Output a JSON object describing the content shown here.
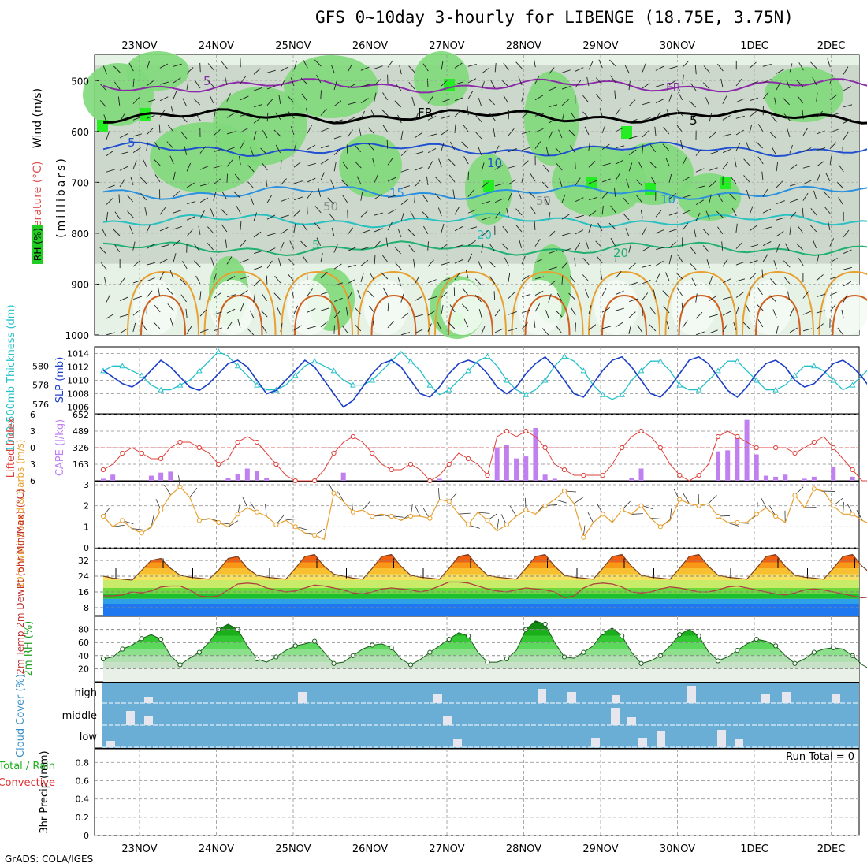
{
  "title": "GFS 0~10day 3-hourly for LIBENGE (18.75E, 3.75N)",
  "footer": "GrADS: COLA/IGES",
  "dates": [
    "23NOV",
    "24NOV",
    "25NOV",
    "26NOV",
    "27NOV",
    "28NOV",
    "29NOV",
    "30NOV",
    "1DEC",
    "2DEC"
  ],
  "colors": {
    "rh_green": "#7fd97a",
    "rh_gray": "#c8d4c8",
    "cloud_blue": "#6aaed6",
    "slp": "#1a3ec8",
    "thickness": "#25c0c8",
    "lifted_index": "#e0403a",
    "cape": "#c080f0",
    "wind": "#e8a030",
    "dewpoint": "#b04040"
  },
  "chart_data": [
    {
      "type": "heatmap",
      "panel": "upper-air",
      "ylabel": "(millibars)",
      "y_ticks": [
        500,
        600,
        700,
        800,
        900,
        1000
      ],
      "ylim": [
        1000,
        450
      ],
      "legend_labels": [
        "Wind (m/s)",
        "Temperature (°C)",
        "RH (%)"
      ],
      "rh_label": "RH (%)",
      "contour_labels": [
        "5",
        "FR",
        "5",
        "10",
        "15",
        "20",
        "5",
        "FR",
        "5",
        "10",
        "20",
        "50",
        "50"
      ],
      "isotherms": [
        {
          "label": "5",
          "pressure": 510
        },
        {
          "label": "FR",
          "pressure": 570
        },
        {
          "label": "5",
          "pressure": 635
        },
        {
          "label": "10",
          "pressure": 720
        },
        {
          "label": "15",
          "pressure": 775
        },
        {
          "label": "20",
          "pressure": 830
        }
      ]
    },
    {
      "type": "line",
      "panel": "slp-thickness",
      "y_left_label": "1000-500mb Thickness (dm)",
      "y_left_ticks": [
        576,
        578,
        580
      ],
      "y_right_label": "SLP (mb)",
      "y_right_ticks": [
        1006,
        1008,
        1010,
        1012,
        1014
      ],
      "ylim_slp": [
        1005,
        1015
      ],
      "series": [
        {
          "name": "SLP (mb)",
          "values": [
            1011.5,
            1010.5,
            1009.5,
            1009,
            1010,
            1011.5,
            1013,
            1012,
            1010.5,
            1009,
            1008.5,
            1009.5,
            1011,
            1012.5,
            1013,
            1012,
            1010,
            1008,
            1008.5,
            1010,
            1011.5,
            1013,
            1012,
            1010,
            1008,
            1006,
            1007,
            1009,
            1011,
            1012.5,
            1013,
            1012,
            1010,
            1008,
            1007.5,
            1009,
            1011,
            1012.5,
            1013,
            1012.5,
            1011,
            1009,
            1008,
            1009,
            1011,
            1012.5,
            1013.5,
            1012,
            1010,
            1008,
            1007.5,
            1009.5,
            1011.5,
            1013,
            1013.5,
            1012,
            1010,
            1008,
            1007.5,
            1009,
            1011,
            1013,
            1013.5,
            1012.5,
            1010.5,
            1008.5,
            1007.5,
            1009,
            1011,
            1012.5,
            1013,
            1012,
            1010,
            1009,
            1009.5,
            1011,
            1012.5,
            1013,
            1012,
            1010.5,
            1008.5,
            1007,
            1008,
            1010,
            1011.5,
            1012.5,
            1012,
            1010
          ]
        },
        {
          "name": "1000-500mb Thickness (dm)",
          "values": [
            579.5,
            580,
            580,
            579.5,
            579,
            578,
            577.5,
            577.5,
            578,
            578.5,
            579.5,
            580.5,
            581.5,
            581,
            580,
            579,
            578,
            577.5,
            577.5,
            578,
            579,
            580,
            580.5,
            580,
            579.5,
            578.5,
            578,
            578,
            578.5,
            579.5,
            580.5,
            581.5,
            580.5,
            579.5,
            578,
            577,
            577.5,
            578.5,
            579.5,
            580.5,
            581,
            580,
            578.5,
            577.5,
            577,
            577.5,
            578.5,
            580,
            581,
            580.5,
            579.5,
            578,
            577,
            576.5,
            577,
            578.5,
            579.5,
            580.5,
            580.5,
            579.5,
            578,
            577.5,
            577.5,
            578.5,
            579.5,
            580.5,
            580.5,
            579.5,
            578.5,
            577.5,
            577.5,
            578,
            579,
            580,
            580,
            579.5,
            578.5,
            577.5,
            578,
            579,
            580,
            581,
            580.5,
            579,
            577.5,
            576.5,
            577,
            578.5
          ]
        }
      ]
    },
    {
      "type": "bar",
      "panel": "lifted-index-cape",
      "y_left_label": "Lifted Index",
      "y_left_ticks": [
        -6,
        -3,
        0,
        3,
        6
      ],
      "y_right_label": "CAPE (J/kg)",
      "y_right_ticks": [
        163,
        326,
        489,
        652
      ],
      "ylim_cape": [
        0,
        652
      ],
      "series": [
        {
          "name": "CAPE (J/kg)",
          "values": [
            20,
            60,
            0,
            0,
            0,
            50,
            80,
            90,
            0,
            0,
            0,
            0,
            0,
            30,
            70,
            120,
            100,
            30,
            0,
            0,
            0,
            0,
            0,
            0,
            0,
            80,
            0,
            0,
            0,
            0,
            0,
            0,
            0,
            0,
            0,
            20,
            0,
            0,
            0,
            0,
            0,
            330,
            350,
            220,
            240,
            520,
            60,
            20,
            0,
            0,
            0,
            0,
            0,
            0,
            0,
            30,
            120,
            0,
            0,
            0,
            0,
            0,
            0,
            0,
            290,
            300,
            450,
            600,
            260,
            50,
            40,
            60,
            0,
            20,
            40,
            0,
            140,
            0,
            40,
            0,
            0,
            0,
            0,
            0,
            0,
            0,
            40,
            160
          ]
        },
        {
          "name": "Lifted Index",
          "values": [
            4,
            3,
            1,
            0,
            1,
            2,
            2,
            0,
            -1,
            -1,
            0,
            1,
            3,
            2,
            -1,
            -2,
            -1,
            1,
            3,
            5,
            6,
            6,
            6,
            4,
            1,
            -1,
            -2,
            -1,
            1,
            3,
            4,
            4,
            3,
            4,
            6,
            5,
            3,
            1,
            2,
            3,
            5,
            -2,
            -3,
            -2,
            -3,
            -2,
            0,
            3,
            4,
            5,
            5,
            5,
            5,
            3,
            0,
            -2,
            -3,
            -2,
            0,
            3,
            5,
            6,
            5,
            3,
            -2,
            -3,
            -2,
            -1,
            0,
            0,
            0,
            0,
            1,
            0,
            -1,
            -2,
            0,
            2,
            4,
            6,
            6,
            6,
            6,
            6,
            5,
            4,
            2,
            -1
          ]
        }
      ]
    },
    {
      "type": "line",
      "panel": "wind",
      "ylabel": "10m Wind Speed & Barbs (m/s)",
      "y_ticks": [
        0,
        1,
        2,
        3
      ],
      "ylim": [
        0,
        3
      ],
      "series": [
        {
          "name": "10m Wind Speed",
          "values": [
            1.5,
            1,
            1.3,
            0.9,
            0.7,
            1,
            1.8,
            2.5,
            2.9,
            2.4,
            1.3,
            1.4,
            1.2,
            1,
            1.6,
            1.9,
            1.7,
            1.5,
            1.1,
            1.3,
            1,
            0.7,
            0.6,
            0.4,
            2.6,
            2.2,
            1.7,
            1.8,
            1.5,
            1.6,
            1.5,
            1.3,
            1.5,
            1.5,
            1.4,
            2.3,
            2.2,
            1.6,
            1.1,
            1.7,
            1.3,
            0.8,
            1.1,
            1.5,
            1.8,
            1.6,
            2,
            2.3,
            2.7,
            2.1,
            0.5,
            1.2,
            1.6,
            1.2,
            1.8,
            1.6,
            2,
            1.4,
            1,
            1.3,
            2.3,
            2.1,
            2,
            2.1,
            1.5,
            1.2,
            1.2,
            1.2,
            1.6,
            1.9,
            1.5,
            1.2,
            2.5,
            1.9,
            2.8,
            2.7,
            2,
            1.6,
            1.6,
            1.3,
            1.1,
            2.5,
            2.9,
            2.8,
            2.6,
            1.6,
            2,
            1.8
          ]
        }
      ]
    },
    {
      "type": "area",
      "panel": "temperature",
      "ylabel": "2m Temp 2m DewPt (6hr Min/Max) (°C)",
      "y_ticks": [
        8,
        16,
        24,
        32
      ],
      "ylim": [
        4,
        38
      ],
      "series": [
        {
          "name": "2m Temp",
          "values": [
            24,
            23,
            22.5,
            22,
            27,
            32,
            33,
            28,
            24.5,
            23.5,
            23,
            22.5,
            27,
            33,
            34,
            28,
            24.5,
            23.5,
            23,
            22.5,
            28,
            34,
            35,
            29,
            25,
            24,
            23,
            22.5,
            28,
            34,
            35,
            29,
            24.5,
            23.5,
            23,
            22.5,
            28,
            34,
            35,
            29,
            24.5,
            23.5,
            23,
            22.5,
            28,
            34,
            35,
            29,
            24.5,
            23.5,
            23,
            22.5,
            28,
            34,
            35,
            29,
            24.5,
            23.5,
            23,
            22.5,
            28,
            34,
            35,
            29,
            24.5,
            23.5,
            23,
            22.5,
            28,
            34,
            35,
            29,
            24.5,
            23.5,
            23,
            22.5,
            28,
            34,
            35,
            29,
            25,
            24,
            23,
            22.5,
            28,
            35,
            36,
            30
          ]
        },
        {
          "name": "2m DewPt",
          "values": [
            14,
            14,
            14.5,
            16,
            15.5,
            16.5,
            18.5,
            19,
            19,
            17,
            14,
            13.5,
            14,
            17,
            20,
            20.5,
            20,
            18,
            17,
            16,
            16.5,
            18,
            19.5,
            19,
            18,
            17,
            15.5,
            15,
            16,
            17.5,
            18,
            17.5,
            17,
            16,
            17,
            19,
            21,
            21,
            20.5,
            19,
            17.5,
            16.5,
            16,
            17,
            18,
            17.5,
            17,
            16,
            13,
            14,
            18,
            20,
            20.5,
            20,
            18.5,
            16,
            15.5,
            16,
            17.5,
            18.5,
            18,
            17,
            16,
            16,
            17,
            18.5,
            19,
            18,
            17,
            16,
            15,
            14.5,
            15.5,
            17,
            17.5,
            17,
            16,
            15,
            14,
            13,
            13.5,
            15,
            16,
            16,
            15,
            14,
            16,
            19
          ]
        }
      ]
    },
    {
      "type": "area",
      "panel": "relative-humidity",
      "ylabel": "2m RH (%)",
      "y_ticks": [
        20,
        40,
        60,
        80
      ],
      "ylim": [
        0,
        100
      ],
      "series": [
        {
          "name": "2m RH",
          "values": [
            35,
            38,
            50,
            56,
            66,
            72,
            65,
            40,
            26,
            36,
            45,
            60,
            80,
            88,
            80,
            55,
            35,
            30,
            38,
            48,
            55,
            58,
            62,
            45,
            28,
            30,
            40,
            50,
            56,
            58,
            52,
            35,
            26,
            34,
            45,
            55,
            65,
            75,
            70,
            45,
            30,
            30,
            35,
            48,
            80,
            93,
            88,
            60,
            38,
            36,
            45,
            55,
            75,
            82,
            70,
            45,
            28,
            32,
            40,
            55,
            72,
            80,
            70,
            46,
            32,
            38,
            48,
            58,
            65,
            62,
            55,
            40,
            28,
            35,
            45,
            50,
            52,
            50,
            40,
            26,
            18,
            28,
            40,
            45,
            55,
            66,
            78,
            80
          ]
        }
      ]
    },
    {
      "type": "heatmap",
      "panel": "cloud-cover",
      "ylabel": "Cloud Cover (%)",
      "rows": [
        "high",
        "middle",
        "low"
      ]
    },
    {
      "type": "bar",
      "panel": "precipitation",
      "ylabel": "3hr Precip (mm)",
      "legend_labels": [
        "Total / Rain",
        "Convective"
      ],
      "y_ticks": [
        "0",
        "0.2",
        "0.4",
        "0.6",
        "0.8"
      ],
      "ylim": [
        0,
        0.95
      ],
      "run_total_label": "Run Total = 0",
      "values": []
    }
  ]
}
